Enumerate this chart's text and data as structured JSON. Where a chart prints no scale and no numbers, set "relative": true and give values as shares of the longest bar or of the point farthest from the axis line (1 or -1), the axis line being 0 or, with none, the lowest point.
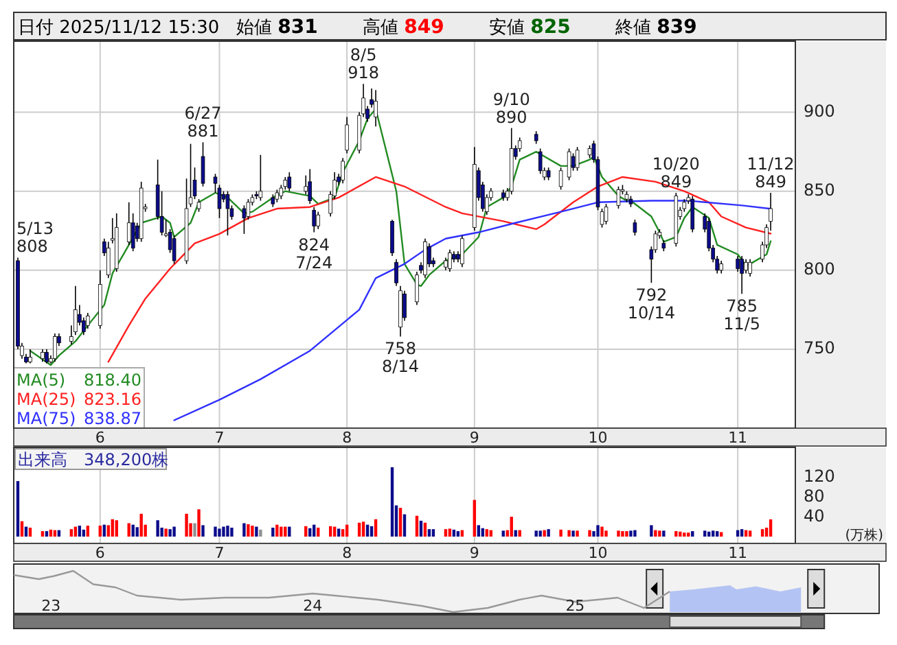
{
  "chart_data": [
    {
      "type": "candlestick",
      "title": "日付 2025/11/12 15:30",
      "annotations": [
        "始値 831",
        "高値 849",
        "安値 825",
        "終値 839",
        "818.40",
        "823.16",
        "838.87",
        {
          "text": "5/13\n808",
          "x": "2025-05-13",
          "y": 808
        },
        {
          "text": "6/27\n881",
          "x": "2025-06-27",
          "y": 881
        },
        {
          "text": "824\n7/24",
          "x": "2025-07-24",
          "y": 824
        },
        {
          "text": "8/5\n918",
          "x": "2025-08-05",
          "y": 918
        },
        {
          "text": "758\n8/14",
          "x": "2025-08-14",
          "y": 758
        },
        {
          "text": "9/10\n890",
          "x": "2025-09-10",
          "y": 890
        },
        {
          "text": "792\n10/14",
          "x": "2025-10-14",
          "y": 792
        },
        {
          "text": "10/20\n849",
          "x": "2025-10-20",
          "y": 849
        },
        {
          "text": "785\n11/5",
          "x": "2025-11-05",
          "y": 785
        },
        {
          "text": "11/12\n849",
          "x": "2025-11-12",
          "y": 849
        }
      ],
      "x": [
        "2025-05-13",
        "2025-05-14",
        "2025-05-15",
        "2025-05-16",
        "2025-05-19",
        "2025-05-20",
        "2025-05-21",
        "2025-05-22",
        "2025-05-23",
        "2025-05-26",
        "2025-05-27",
        "2025-05-28",
        "2025-05-29",
        "2025-05-30",
        "2025-06-02",
        "2025-06-03",
        "2025-06-04",
        "2025-06-05",
        "2025-06-06",
        "2025-06-09",
        "2025-06-10",
        "2025-06-11",
        "2025-06-12",
        "2025-06-13",
        "2025-06-16",
        "2025-06-17",
        "2025-06-18",
        "2025-06-19",
        "2025-06-20",
        "2025-06-23",
        "2025-06-24",
        "2025-06-25",
        "2025-06-26",
        "2025-06-27",
        "2025-06-30",
        "2025-07-01",
        "2025-07-02",
        "2025-07-03",
        "2025-07-04",
        "2025-07-07",
        "2025-07-08",
        "2025-07-09",
        "2025-07-10",
        "2025-07-11",
        "2025-07-14",
        "2025-07-15",
        "2025-07-16",
        "2025-07-17",
        "2025-07-18",
        "2025-07-22",
        "2025-07-23",
        "2025-07-24",
        "2025-07-25",
        "2025-07-28",
        "2025-07-29",
        "2025-07-30",
        "2025-07-31",
        "2025-08-01",
        "2025-08-04",
        "2025-08-05",
        "2025-08-06",
        "2025-08-07",
        "2025-08-08",
        "2025-08-12",
        "2025-08-13",
        "2025-08-14",
        "2025-08-15",
        "2025-08-18",
        "2025-08-19",
        "2025-08-20",
        "2025-08-21",
        "2025-08-22",
        "2025-08-25",
        "2025-08-26",
        "2025-08-27",
        "2025-08-28",
        "2025-08-29",
        "2025-09-01",
        "2025-09-02",
        "2025-09-03",
        "2025-09-04",
        "2025-09-05",
        "2025-09-08",
        "2025-09-09",
        "2025-09-10",
        "2025-09-11",
        "2025-09-12",
        "2025-09-16",
        "2025-09-17",
        "2025-09-18",
        "2025-09-19",
        "2025-09-22",
        "2025-09-24",
        "2025-09-25",
        "2025-09-26",
        "2025-09-29",
        "2025-09-30",
        "2025-10-01",
        "2025-10-02",
        "2025-10-03",
        "2025-10-06",
        "2025-10-07",
        "2025-10-08",
        "2025-10-09",
        "2025-10-10",
        "2025-10-14",
        "2025-10-15",
        "2025-10-16",
        "2025-10-17",
        "2025-10-20",
        "2025-10-21",
        "2025-10-22",
        "2025-10-23",
        "2025-10-24",
        "2025-10-27",
        "2025-10-28",
        "2025-10-29",
        "2025-10-30",
        "2025-10-31",
        "2025-11-04",
        "2025-11-05",
        "2025-11-06",
        "2025-11-07",
        "2025-11-10",
        "2025-11-11",
        "2025-11-12"
      ],
      "ohlc": [
        [
          806,
          808,
          750,
          752
        ],
        [
          746,
          754,
          744,
          752
        ],
        [
          745,
          747,
          741,
          742
        ],
        [
          742,
          750,
          741,
          745
        ],
        [
          744,
          750,
          742,
          748
        ],
        [
          748,
          750,
          741,
          742
        ],
        [
          742,
          746,
          741,
          744
        ],
        [
          744,
          760,
          742,
          758
        ],
        [
          758,
          760,
          752,
          754
        ],
        [
          755,
          765,
          753,
          758
        ],
        [
          761,
          790,
          759,
          775
        ],
        [
          772,
          778,
          765,
          767
        ],
        [
          768,
          770,
          759,
          761
        ],
        [
          765,
          773,
          763,
          771
        ],
        [
          765,
          800,
          763,
          791
        ],
        [
          818,
          820,
          809,
          811
        ],
        [
          797,
          818,
          795,
          814
        ],
        [
          819,
          833,
          817,
          820
        ],
        [
          801,
          836,
          799,
          827
        ],
        [
          818,
          843,
          816,
          830
        ],
        [
          830,
          836,
          812,
          814
        ],
        [
          828,
          830,
          818,
          820
        ],
        [
          820,
          856,
          818,
          852
        ],
        [
          839,
          842,
          837,
          840
        ],
        [
          854,
          870,
          832,
          834
        ],
        [
          834,
          850,
          822,
          824
        ],
        [
          822,
          832,
          821,
          823
        ],
        [
          824,
          826,
          811,
          813
        ],
        [
          820,
          822,
          804,
          806
        ],
        [
          806,
          858,
          804,
          839
        ],
        [
          842,
          880,
          840,
          846
        ],
        [
          857,
          865,
          845,
          847
        ],
        [
          839,
          845,
          837,
          843
        ],
        [
          872,
          881,
          853,
          855
        ],
        [
          859,
          861,
          849,
          855
        ],
        [
          852,
          854,
          833,
          839
        ],
        [
          848,
          850,
          843,
          845
        ],
        [
          848,
          850,
          822,
          839
        ],
        [
          839,
          841,
          832,
          834
        ],
        [
          839,
          841,
          823,
          833
        ],
        [
          834,
          845,
          832,
          843
        ],
        [
          843,
          848,
          841,
          846
        ],
        [
          848,
          850,
          845,
          847
        ],
        [
          846,
          873,
          844,
          850
        ],
        [
          846,
          848,
          840,
          842
        ],
        [
          845,
          851,
          843,
          849
        ],
        [
          847,
          854,
          845,
          852
        ],
        [
          853,
          859,
          851,
          857
        ],
        [
          859,
          862,
          850,
          852
        ],
        [
          850,
          860,
          848,
          853
        ],
        [
          856,
          864,
          842,
          844
        ],
        [
          838,
          840,
          824,
          828
        ],
        [
          828,
          837,
          826,
          835
        ],
        [
          836,
          850,
          834,
          848
        ],
        [
          847,
          862,
          845,
          857
        ],
        [
          859,
          861,
          854,
          856
        ],
        [
          857,
          871,
          855,
          869
        ],
        [
          876,
          897,
          874,
          892
        ],
        [
          876,
          900,
          874,
          898
        ],
        [
          899,
          918,
          897,
          909
        ],
        [
          902,
          904,
          894,
          896
        ],
        [
          908,
          915,
          903,
          905
        ],
        [
          897,
          914,
          891,
          907
        ],
        [
          831,
          832,
          809,
          811
        ],
        [
          805,
          807,
          790,
          792
        ],
        [
          764,
          790,
          758,
          787
        ],
        [
          785,
          787,
          768,
          770
        ],
        [
          780,
          799,
          778,
          797
        ],
        [
          803,
          805,
          798,
          800
        ],
        [
          797,
          820,
          795,
          818
        ],
        [
          815,
          817,
          802,
          804
        ],
        [
          806,
          808,
          802,
          804
        ],
        [
          802,
          808,
          800,
          806
        ],
        [
          801,
          813,
          799,
          811
        ],
        [
          810,
          812,
          805,
          807
        ],
        [
          810,
          812,
          805,
          807
        ],
        [
          804,
          822,
          802,
          820
        ],
        [
          827,
          878,
          825,
          867
        ],
        [
          863,
          865,
          844,
          846
        ],
        [
          854,
          856,
          837,
          839
        ],
        [
          837,
          848,
          835,
          846
        ],
        [
          846,
          852,
          844,
          850
        ],
        [
          849,
          851,
          844,
          846
        ],
        [
          846,
          852,
          844,
          850
        ],
        [
          850,
          890,
          848,
          877
        ],
        [
          877,
          879,
          870,
          872
        ],
        [
          877,
          884,
          875,
          882
        ],
        [
          886,
          888,
          880,
          882
        ],
        [
          875,
          877,
          861,
          863
        ],
        [
          859,
          865,
          857,
          863
        ],
        [
          863,
          865,
          857,
          859
        ],
        [
          853,
          865,
          851,
          863
        ],
        [
          859,
          877,
          857,
          875
        ],
        [
          872,
          874,
          863,
          865
        ],
        [
          865,
          878,
          863,
          876
        ],
        [
          873,
          879,
          871,
          877
        ],
        [
          880,
          882,
          868,
          870
        ],
        [
          870,
          872,
          838,
          840
        ],
        [
          829,
          839,
          827,
          837
        ],
        [
          831,
          842,
          829,
          840
        ],
        [
          841,
          853,
          839,
          851
        ],
        [
          850,
          854,
          848,
          851
        ],
        [
          845,
          850,
          843,
          848
        ],
        [
          845,
          847,
          840,
          842
        ],
        [
          830,
          832,
          822,
          824
        ],
        [
          813,
          815,
          792,
          807
        ],
        [
          813,
          825,
          811,
          823
        ],
        [
          822,
          826,
          820,
          824
        ],
        [
          817,
          819,
          812,
          814
        ],
        [
          817,
          849,
          815,
          847
        ],
        [
          834,
          840,
          832,
          838
        ],
        [
          839,
          845,
          837,
          843
        ],
        [
          844,
          848,
          842,
          846
        ],
        [
          845,
          847,
          824,
          826
        ],
        [
          834,
          836,
          824,
          826
        ],
        [
          831,
          833,
          812,
          814
        ],
        [
          814,
          816,
          805,
          807
        ],
        [
          807,
          809,
          798,
          800
        ],
        [
          800,
          806,
          798,
          804
        ],
        [
          807,
          809,
          799,
          801
        ],
        [
          807,
          809,
          785,
          798
        ],
        [
          800,
          807,
          798,
          805
        ],
        [
          798,
          807,
          796,
          805
        ],
        [
          807,
          818,
          805,
          816
        ],
        [
          816,
          829,
          814,
          827
        ],
        [
          831,
          849,
          825,
          839
        ]
      ],
      "colors": [
        "#0c0c8c",
        "#ffffff",
        "#0c0c8c",
        "#ffffff",
        "#ffffff",
        "#0c0c8c",
        "#ffffff",
        "#ffffff",
        "#0c0c8c",
        "#ffffff",
        "#ffffff",
        "#0c0c8c",
        "#0c0c8c",
        "#ffffff",
        "#ffffff",
        "#0c0c8c",
        "#ffffff",
        "#ffffff",
        "#ffffff",
        "#ffffff",
        "#0c0c8c",
        "#0c0c8c",
        "#ffffff",
        "#ffffff",
        "#0c0c8c",
        "#0c0c8c",
        "#ffffff",
        "#0c0c8c",
        "#0c0c8c",
        "#ffffff",
        "#ffffff",
        "#0c0c8c",
        "#ffffff",
        "#0c0c8c",
        "#0c0c8c",
        "#0c0c8c",
        "#0c0c8c",
        "#0c0c8c",
        "#0c0c8c",
        "#0c0c8c",
        "#ffffff",
        "#ffffff",
        "#0c0c8c",
        "#ffffff",
        "#0c0c8c",
        "#ffffff",
        "#ffffff",
        "#ffffff",
        "#0c0c8c",
        "#ffffff",
        "#0c0c8c",
        "#0c0c8c",
        "#ffffff",
        "#ffffff",
        "#ffffff",
        "#0c0c8c",
        "#ffffff",
        "#ffffff",
        "#ffffff",
        "#ffffff",
        "#0c0c8c",
        "#0c0c8c",
        "#ffffff",
        "#0c0c8c",
        "#0c0c8c",
        "#ffffff",
        "#0c0c8c",
        "#ffffff",
        "#0c0c8c",
        "#ffffff",
        "#0c0c8c",
        "#0c0c8c",
        "#ffffff",
        "#ffffff",
        "#0c0c8c",
        "#0c0c8c",
        "#ffffff",
        "#ffffff",
        "#0c0c8c",
        "#0c0c8c",
        "#ffffff",
        "#ffffff",
        "#0c0c8c",
        "#ffffff",
        "#ffffff",
        "#0c0c8c",
        "#ffffff",
        "#0c0c8c",
        "#0c0c8c",
        "#ffffff",
        "#0c0c8c",
        "#ffffff",
        "#ffffff",
        "#0c0c8c",
        "#ffffff",
        "#ffffff",
        "#0c0c8c",
        "#0c0c8c",
        "#ffffff",
        "#ffffff",
        "#ffffff",
        "#ffffff",
        "#ffffff",
        "#0c0c8c",
        "#0c0c8c",
        "#0c0c8c",
        "#ffffff",
        "#ffffff",
        "#0c0c8c",
        "#ffffff",
        "#ffffff",
        "#ffffff",
        "#ffffff",
        "#0c0c8c",
        "#0c0c8c",
        "#0c0c8c",
        "#0c0c8c",
        "#0c0c8c",
        "#ffffff",
        "#0c0c8c",
        "#0c0c8c",
        "#ffffff",
        "#ffffff",
        "#ffffff",
        "#ffffff",
        "#ffffff"
      ],
      "series": [
        {
          "name": "MA(5)",
          "type": "line",
          "color": "#228b22",
          "x": [
            "2025-05-16",
            "2025-05-21",
            "2025-05-23",
            "2025-05-27",
            "2025-05-30",
            "2025-06-03",
            "2025-06-05",
            "2025-06-09",
            "2025-06-12",
            "2025-06-17",
            "2025-06-19",
            "2025-06-20",
            "2025-06-24",
            "2025-06-26",
            "2025-06-30",
            "2025-07-03",
            "2025-07-07",
            "2025-07-09",
            "2025-07-14",
            "2025-07-17",
            "2025-07-23",
            "2025-07-25",
            "2025-07-29",
            "2025-07-31",
            "2025-08-04",
            "2025-08-06",
            "2025-08-08",
            "2025-08-13",
            "2025-08-15",
            "2025-08-18",
            "2025-08-19",
            "2025-08-21",
            "2025-08-25",
            "2025-08-27",
            "2025-08-29",
            "2025-09-02",
            "2025-09-04",
            "2025-09-08",
            "2025-09-10",
            "2025-09-12",
            "2025-09-16",
            "2025-09-18",
            "2025-09-22",
            "2025-09-25",
            "2025-09-29",
            "2025-09-30",
            "2025-10-02",
            "2025-10-06",
            "2025-10-08",
            "2025-10-09",
            "2025-10-14",
            "2025-10-16",
            "2025-10-17",
            "2025-10-20",
            "2025-10-22",
            "2025-10-24",
            "2025-10-28",
            "2025-10-30",
            "2025-11-04",
            "2025-11-06",
            "2025-11-07",
            "2025-11-11",
            "2025-11-12"
          ],
          "values": [
            749,
            740,
            746,
            755,
            765,
            778,
            798,
            816,
            830,
            834,
            830,
            821,
            830,
            843,
            849,
            846,
            836,
            837,
            846,
            850,
            847,
            842,
            846,
            862,
            882,
            896,
            902,
            850,
            804,
            791,
            790,
            797,
            806,
            808,
            810,
            821,
            840,
            846,
            853,
            870,
            875,
            872,
            866,
            866,
            870,
            872,
            859,
            847,
            844,
            844,
            834,
            824,
            818,
            821,
            833,
            840,
            833,
            816,
            810,
            803,
            804,
            810,
            818.4
          ]
        },
        {
          "name": "MA(25)",
          "type": "line",
          "color": "#ff2020",
          "x": [
            "2025-06-04",
            "2025-06-09",
            "2025-06-13",
            "2025-06-19",
            "2025-06-25",
            "2025-07-01",
            "2025-07-08",
            "2025-07-15",
            "2025-07-23",
            "2025-07-30",
            "2025-08-08",
            "2025-08-15",
            "2025-08-25",
            "2025-08-29",
            "2025-09-08",
            "2025-09-16",
            "2025-09-18",
            "2025-09-25",
            "2025-10-01",
            "2025-10-07",
            "2025-10-15",
            "2025-10-22",
            "2025-10-28",
            "2025-10-31",
            "2025-11-06",
            "2025-11-12"
          ],
          "values": [
            742,
            765,
            782,
            801,
            817,
            823,
            833,
            839,
            840,
            846,
            859,
            853,
            840,
            836,
            831,
            826,
            829,
            843,
            853,
            859,
            856,
            850,
            843,
            834,
            827,
            823.16
          ]
        },
        {
          "name": "MA(75)",
          "type": "line",
          "color": "#3030ff",
          "x": [
            "2025-06-20",
            "2025-07-01",
            "2025-07-11",
            "2025-07-23",
            "2025-08-04",
            "2025-08-08",
            "2025-08-15",
            "2025-08-20",
            "2025-08-25",
            "2025-09-02",
            "2025-09-11",
            "2025-09-22",
            "2025-10-01",
            "2025-10-14",
            "2025-10-23",
            "2025-11-05",
            "2025-11-12"
          ],
          "values": [
            705,
            718,
            731,
            749,
            775,
            795,
            804,
            813,
            820,
            824,
            830,
            837,
            843,
            844,
            844,
            841,
            838.87
          ]
        }
      ],
      "ylim": [
        700,
        945
      ],
      "yticks": [
        750,
        800,
        850,
        900
      ],
      "xticks": [
        {
          "value": "2025-06-02",
          "label": "6"
        },
        {
          "value": "2025-07-01",
          "label": "7"
        },
        {
          "value": "2025-08-01",
          "label": "8"
        },
        {
          "value": "2025-09-01",
          "label": "9"
        },
        {
          "value": "2025-10-01",
          "label": "10"
        },
        {
          "value": "2025-11-04",
          "label": "11"
        }
      ],
      "xlim": [
        "2025-05-12",
        "2025-11-18"
      ],
      "grid": true,
      "legend": "bottom left"
    },
    {
      "type": "bar",
      "title": "出来高　348,200株",
      "ylabel": "(万株)",
      "x": [
        "2025-05-13",
        "2025-05-14",
        "2025-05-15",
        "2025-05-16",
        "2025-05-19",
        "2025-05-20",
        "2025-05-21",
        "2025-05-22",
        "2025-05-23",
        "2025-05-26",
        "2025-05-27",
        "2025-05-28",
        "2025-05-29",
        "2025-05-30",
        "2025-06-02",
        "2025-06-03",
        "2025-06-04",
        "2025-06-05",
        "2025-06-06",
        "2025-06-09",
        "2025-06-10",
        "2025-06-11",
        "2025-06-12",
        "2025-06-13",
        "2025-06-16",
        "2025-06-17",
        "2025-06-18",
        "2025-06-19",
        "2025-06-20",
        "2025-06-23",
        "2025-06-24",
        "2025-06-25",
        "2025-06-26",
        "2025-06-27",
        "2025-06-30",
        "2025-07-01",
        "2025-07-02",
        "2025-07-03",
        "2025-07-04",
        "2025-07-07",
        "2025-07-08",
        "2025-07-09",
        "2025-07-10",
        "2025-07-11",
        "2025-07-14",
        "2025-07-15",
        "2025-07-16",
        "2025-07-17",
        "2025-07-18",
        "2025-07-22",
        "2025-07-23",
        "2025-07-24",
        "2025-07-25",
        "2025-07-28",
        "2025-07-29",
        "2025-07-30",
        "2025-07-31",
        "2025-08-01",
        "2025-08-04",
        "2025-08-05",
        "2025-08-06",
        "2025-08-07",
        "2025-08-08",
        "2025-08-12",
        "2025-08-13",
        "2025-08-14",
        "2025-08-15",
        "2025-08-18",
        "2025-08-19",
        "2025-08-20",
        "2025-08-21",
        "2025-08-22",
        "2025-08-25",
        "2025-08-26",
        "2025-08-27",
        "2025-08-28",
        "2025-08-29",
        "2025-09-01",
        "2025-09-02",
        "2025-09-03",
        "2025-09-04",
        "2025-09-05",
        "2025-09-08",
        "2025-09-09",
        "2025-09-10",
        "2025-09-11",
        "2025-09-12",
        "2025-09-16",
        "2025-09-17",
        "2025-09-18",
        "2025-09-19",
        "2025-09-22",
        "2025-09-24",
        "2025-09-25",
        "2025-09-26",
        "2025-09-29",
        "2025-09-30",
        "2025-10-01",
        "2025-10-02",
        "2025-10-03",
        "2025-10-06",
        "2025-10-07",
        "2025-10-08",
        "2025-10-09",
        "2025-10-10",
        "2025-10-14",
        "2025-10-15",
        "2025-10-16",
        "2025-10-17",
        "2025-10-20",
        "2025-10-21",
        "2025-10-22",
        "2025-10-23",
        "2025-10-24",
        "2025-10-27",
        "2025-10-28",
        "2025-10-29",
        "2025-10-30",
        "2025-10-31",
        "2025-11-04",
        "2025-11-05",
        "2025-11-06",
        "2025-11-07",
        "2025-11-10",
        "2025-11-11",
        "2025-11-12"
      ],
      "values": [
        112,
        31,
        20,
        18,
        11,
        11,
        14,
        13,
        13,
        15,
        20,
        22,
        14,
        22,
        22,
        24,
        23,
        35,
        33,
        27,
        24,
        19,
        46,
        24,
        33,
        18,
        16,
        15,
        20,
        46,
        27,
        27,
        55,
        23,
        20,
        16,
        20,
        22,
        18,
        27,
        25,
        22,
        20,
        14,
        18,
        24,
        20,
        20,
        20,
        21,
        17,
        24,
        18,
        21,
        20,
        16,
        15,
        24,
        28,
        30,
        24,
        21,
        35,
        140,
        63,
        58,
        45,
        42,
        32,
        28,
        15,
        15,
        15,
        16,
        14,
        11,
        13,
        74,
        23,
        17,
        15,
        13,
        12,
        13,
        40,
        13,
        13,
        12,
        12,
        13,
        15,
        14,
        13,
        12,
        12,
        13,
        11,
        23,
        20,
        12,
        12,
        11,
        11,
        12,
        13,
        23,
        13,
        12,
        12,
        11,
        10,
        8,
        8,
        11,
        12,
        10,
        12,
        11,
        9,
        13,
        15,
        13,
        12,
        15,
        18,
        34.82
      ],
      "colors": [
        "#0c0c8c",
        "#ff0000",
        "#0c0c8c",
        "#ff0000",
        "#ff0000",
        "#0c0c8c",
        "#ff0000",
        "#ff0000",
        "#0c0c8c",
        "#ff0000",
        "#ff0000",
        "#0c0c8c",
        "#0c0c8c",
        "#ff0000",
        "#ff0000",
        "#0c0c8c",
        "#ff0000",
        "#ff0000",
        "#ff0000",
        "#ff0000",
        "#0c0c8c",
        "#0c0c8c",
        "#ff0000",
        "#ff0000",
        "#0c0c8c",
        "#0c0c8c",
        "#ff0000",
        "#0c0c8c",
        "#0c0c8c",
        "#ff0000",
        "#ff0000",
        "#909090",
        "#ff0000",
        "#0c0c8c",
        "#0c0c8c",
        "#0c0c8c",
        "#0c0c8c",
        "#0c0c8c",
        "#0c0c8c",
        "#0c0c8c",
        "#ff0000",
        "#ff0000",
        "#0c0c8c",
        "#909090",
        "#0c0c8c",
        "#ff0000",
        "#ff0000",
        "#ff0000",
        "#0c0c8c",
        "#ff0000",
        "#0c0c8c",
        "#0c0c8c",
        "#ff0000",
        "#ff0000",
        "#ff0000",
        "#0c0c8c",
        "#ff0000",
        "#ff0000",
        "#ff0000",
        "#ff0000",
        "#0c0c8c",
        "#0c0c8c",
        "#ff0000",
        "#0c0c8c",
        "#0c0c8c",
        "#ff0000",
        "#0c0c8c",
        "#ff0000",
        "#0c0c8c",
        "#ff0000",
        "#0c0c8c",
        "#0c0c8c",
        "#ff0000",
        "#ff0000",
        "#0c0c8c",
        "#0c0c8c",
        "#ff0000",
        "#ff0000",
        "#0c0c8c",
        "#0c0c8c",
        "#ff0000",
        "#ff0000",
        "#0c0c8c",
        "#ff0000",
        "#ff0000",
        "#0c0c8c",
        "#ff0000",
        "#0c0c8c",
        "#0c0c8c",
        "#ff0000",
        "#0c0c8c",
        "#ff0000",
        "#ff0000",
        "#0c0c8c",
        "#ff0000",
        "#ff0000",
        "#0c0c8c",
        "#0c0c8c",
        "#ff0000",
        "#ff0000",
        "#ff0000",
        "#ff0000",
        "#ff0000",
        "#0c0c8c",
        "#0c0c8c",
        "#0c0c8c",
        "#ff0000",
        "#ff0000",
        "#0c0c8c",
        "#ff0000",
        "#ff0000",
        "#ff0000",
        "#ff0000",
        "#0c0c8c",
        "#0c0c8c",
        "#0c0c8c",
        "#0c0c8c",
        "#0c0c8c",
        "#ff0000",
        "#0c0c8c",
        "#0c0c8c",
        "#ff0000",
        "#ff0000",
        "#ff0000",
        "#ff0000",
        "#ff0000"
      ],
      "ylim": [
        0,
        180
      ],
      "yticks": [
        40,
        80,
        120
      ],
      "xticks": [
        {
          "value": "2025-06-02",
          "label": "6"
        },
        {
          "value": "2025-07-01",
          "label": "7"
        },
        {
          "value": "2025-08-01",
          "label": "8"
        },
        {
          "value": "2025-09-01",
          "label": "9"
        },
        {
          "value": "2025-10-01",
          "label": "10"
        },
        {
          "value": "2025-11-04",
          "label": "11"
        }
      ],
      "xlim": [
        "2025-05-12",
        "2025-11-18"
      ],
      "grid": "x"
    },
    {
      "type": "line",
      "relative": true,
      "series": [
        {
          "type": "line",
          "color": "#999999",
          "x": [
            "2022-11-10",
            "2022-12-15",
            "2023-01-05",
            "2023-02-01",
            "2023-03-01",
            "2023-04-01",
            "2023-05-01",
            "2023-07-01",
            "2023-09-01",
            "2023-11-01",
            "2024-01-01",
            "2024-02-01",
            "2024-04-01",
            "2024-06-01",
            "2024-07-15",
            "2024-09-01",
            "2024-10-15",
            "2024-11-15",
            "2025-01-01",
            "2025-02-01",
            "2025-03-01",
            "2025-04-07",
            "2025-05-13"
          ],
          "values": [
            0.9,
            0.8,
            0.875,
            1,
            0.675,
            0.6,
            0.4,
            0.3,
            0.35,
            0.35,
            0.45,
            0.4,
            0.3,
            0.15,
            0,
            0.1,
            0.3,
            0.4,
            0.25,
            0.3,
            0.35,
            0.1,
            0.5
          ]
        },
        {
          "type": "area",
          "color": "#b3c3f3",
          "x": [
            "2025-05-13",
            "2025-06-15",
            "2025-08-05",
            "2025-08-14",
            "2025-09-10",
            "2025-10-14",
            "2025-11-12"
          ],
          "values": [
            0.5,
            0.55,
            0.65,
            0.55,
            0.625,
            0.5,
            0.6
          ]
        }
      ],
      "xlim": [
        "2022-11-10",
        "2026-03-01"
      ],
      "xticks": [
        {
          "value": "2023-01-01",
          "label": "23"
        },
        {
          "value": "2024-01-01",
          "label": "24"
        },
        {
          "value": "2025-01-01",
          "label": "25"
        }
      ]
    }
  ]
}
